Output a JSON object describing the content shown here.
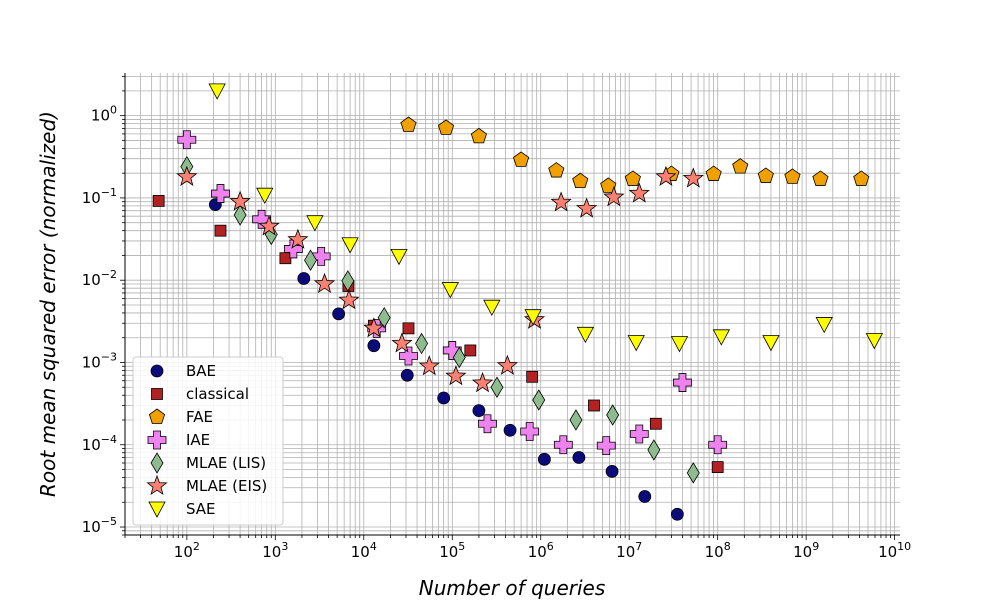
{
  "chart_data": {
    "type": "scatter",
    "title": "",
    "xlabel": "Number of queries",
    "ylabel": "Root mean squared error (normalized)",
    "xscale": "log",
    "yscale": "log",
    "xlim": [
      20,
      11500000000
    ],
    "ylim": [
      8e-06,
      3.3
    ],
    "x_tick_labels": [
      {
        "exp": 2,
        "label": "10",
        "sup": "2"
      },
      {
        "exp": 3,
        "label": "10",
        "sup": "3"
      },
      {
        "exp": 4,
        "label": "10",
        "sup": "4"
      },
      {
        "exp": 5,
        "label": "10",
        "sup": "5"
      },
      {
        "exp": 6,
        "label": "10",
        "sup": "6"
      },
      {
        "exp": 7,
        "label": "10",
        "sup": "7"
      },
      {
        "exp": 8,
        "label": "10",
        "sup": "8"
      },
      {
        "exp": 9,
        "label": "10",
        "sup": "9"
      },
      {
        "exp": 10,
        "label": "10",
        "sup": "10"
      }
    ],
    "y_tick_labels": [
      {
        "exp": 0,
        "label": "10",
        "sup": "0"
      },
      {
        "exp": -1,
        "label": "10",
        "sup": "−1"
      },
      {
        "exp": -2,
        "label": "10",
        "sup": "−2"
      },
      {
        "exp": -3,
        "label": "10",
        "sup": "−3"
      },
      {
        "exp": -4,
        "label": "10",
        "sup": "−4"
      },
      {
        "exp": -5,
        "label": "10",
        "sup": "−5"
      }
    ],
    "grid": true,
    "legend_position": "lower-left",
    "series": [
      {
        "name": "BAE",
        "marker": "circle",
        "color": "#0a0a7a",
        "points": [
          [
            210,
            0.083
          ],
          [
            2100,
            0.0105
          ],
          [
            5200,
            0.0039
          ],
          [
            13000,
            0.0016
          ],
          [
            31000,
            0.0007
          ],
          [
            80000,
            0.00037
          ],
          [
            200000,
            0.00026
          ],
          [
            450000,
            0.00015
          ],
          [
            1100000,
            6.65e-05
          ],
          [
            2700000,
            7e-05
          ],
          [
            6400000,
            4.75e-05
          ],
          [
            15000000,
            2.35e-05
          ],
          [
            35000000,
            1.43e-05
          ]
        ]
      },
      {
        "name": "classical",
        "marker": "square",
        "color": "#b22222",
        "points": [
          [
            48,
            0.092
          ],
          [
            240,
            0.04
          ],
          [
            1300,
            0.0185
          ],
          [
            6700,
            0.0085
          ],
          [
            13000,
            0.0028
          ],
          [
            32000,
            0.0026
          ],
          [
            160000,
            0.0014
          ],
          [
            800000,
            0.00067
          ],
          [
            4000000,
            0.0003
          ],
          [
            20000000,
            0.00018
          ],
          [
            100000000,
            5.35e-05
          ]
        ]
      },
      {
        "name": "FAE",
        "marker": "pentagon",
        "color": "#f0a000",
        "points": [
          [
            32000,
            0.77
          ],
          [
            85000,
            0.71
          ],
          [
            200000,
            0.56
          ],
          [
            600000,
            0.29
          ],
          [
            1500000,
            0.215
          ],
          [
            2800000,
            0.16
          ],
          [
            5800000,
            0.14
          ],
          [
            11000000,
            0.17
          ],
          [
            30000000,
            0.195
          ],
          [
            90000000,
            0.195
          ],
          [
            180000000,
            0.24
          ],
          [
            350000000,
            0.185
          ],
          [
            700000000,
            0.18
          ],
          [
            1450000000,
            0.17
          ],
          [
            4200000000,
            0.17
          ]
        ]
      },
      {
        "name": "IAE",
        "marker": "plus",
        "color": "#ee82ee",
        "points": [
          [
            100,
            0.51
          ],
          [
            240,
            0.113
          ],
          [
            700,
            0.055
          ],
          [
            1600,
            0.024
          ],
          [
            3300,
            0.0195
          ],
          [
            14000,
            0.0026
          ],
          [
            32000,
            0.0012
          ],
          [
            100000,
            0.0014
          ],
          [
            250000,
            0.00018
          ],
          [
            750000,
            0.000145
          ],
          [
            1800000,
            0.0001
          ],
          [
            5500000,
            9.75e-05
          ],
          [
            13000000,
            0.000135
          ],
          [
            40000000,
            0.00057
          ],
          [
            100000000,
            0.0001
          ]
        ]
      },
      {
        "name": "MLAE (LIS)",
        "marker": "diamond",
        "color": "#8fbc8f",
        "points": [
          [
            100,
            0.24
          ],
          [
            400,
            0.062
          ],
          [
            900,
            0.036
          ],
          [
            2500,
            0.0175
          ],
          [
            6600,
            0.0098
          ],
          [
            17000,
            0.0035
          ],
          [
            45000,
            0.0017
          ],
          [
            120000,
            0.00115
          ],
          [
            320000,
            0.0005
          ],
          [
            950000,
            0.00035
          ],
          [
            2500000,
            0.0002
          ],
          [
            6500000,
            0.00023
          ],
          [
            19000000,
            8.65e-05
          ],
          [
            53000000,
            4.55e-05
          ]
        ]
      },
      {
        "name": "MLAE (EIS)",
        "marker": "star",
        "color": "#fa8072",
        "points": [
          [
            100,
            0.18
          ],
          [
            400,
            0.09
          ],
          [
            850,
            0.045
          ],
          [
            1800,
            0.031
          ],
          [
            3600,
            0.009
          ],
          [
            6800,
            0.0057
          ],
          [
            13000,
            0.0026
          ],
          [
            27000,
            0.0017
          ],
          [
            55000,
            0.0009
          ],
          [
            110000,
            0.00068
          ],
          [
            220000,
            0.00056
          ],
          [
            420000,
            0.00091
          ],
          [
            850000,
            0.0033
          ],
          [
            1700000,
            0.088
          ],
          [
            3300000,
            0.074
          ],
          [
            6700000,
            0.102
          ],
          [
            13000000,
            0.113
          ],
          [
            26000000,
            0.18
          ],
          [
            53000000,
            0.172
          ]
        ]
      },
      {
        "name": "SAE",
        "marker": "triangle-down",
        "color": "#ffff00",
        "points": [
          [
            220,
            2.0
          ],
          [
            760,
            0.108
          ],
          [
            2800,
            0.05
          ],
          [
            7000,
            0.027
          ],
          [
            25000,
            0.0195
          ],
          [
            95000,
            0.0077
          ],
          [
            280000,
            0.0047
          ],
          [
            820000,
            0.0036
          ],
          [
            3200000,
            0.0022
          ],
          [
            12000000,
            0.00175
          ],
          [
            37000000,
            0.0017
          ],
          [
            110000000,
            0.00205
          ],
          [
            400000000,
            0.00175
          ],
          [
            1600000000,
            0.0029
          ],
          [
            5900000000,
            0.00185
          ]
        ]
      }
    ]
  }
}
